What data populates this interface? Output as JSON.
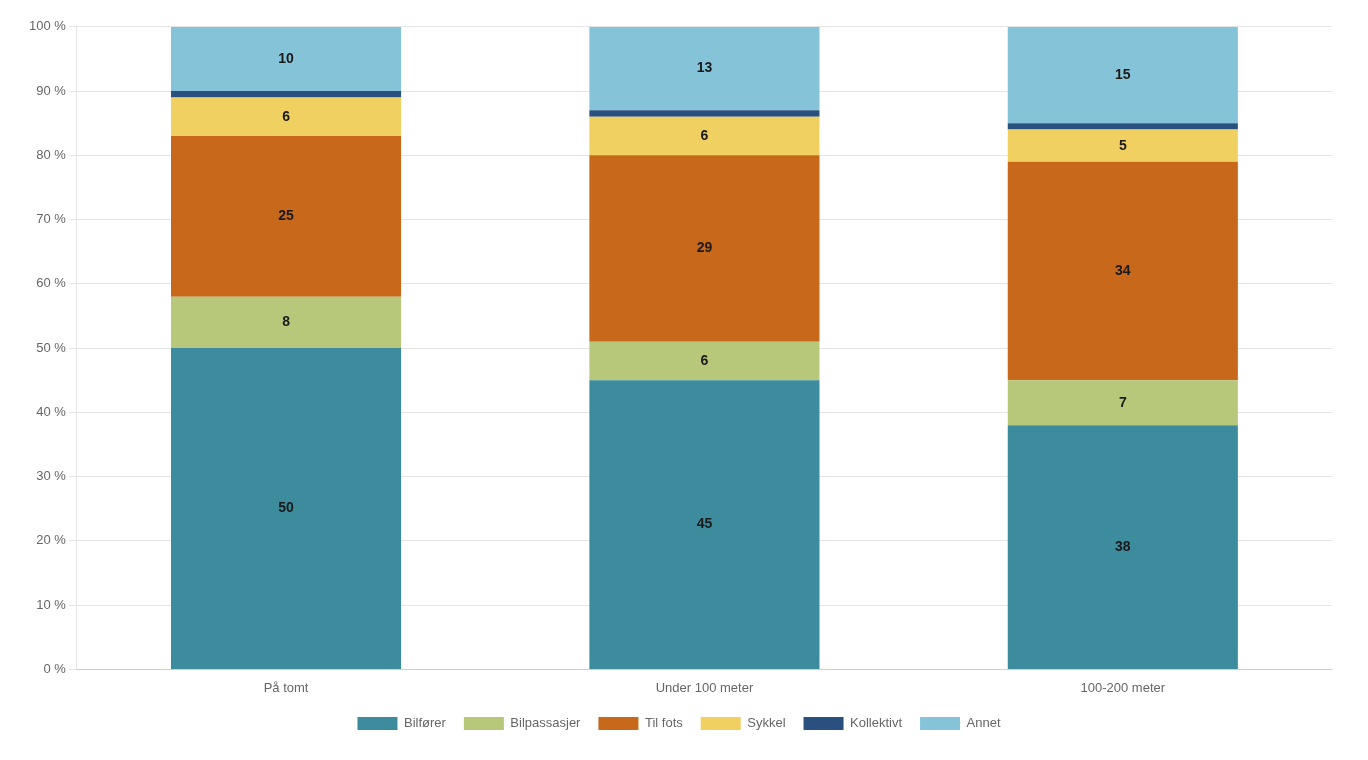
{
  "chart_data": {
    "type": "bar",
    "stacked": true,
    "categories": [
      "På tomt",
      "Under 100 meter",
      "100-200 meter"
    ],
    "series": [
      {
        "name": "Bilfører",
        "color": "#3d8c9e",
        "values": [
          50,
          45,
          38
        ]
      },
      {
        "name": "Bilpassasjer",
        "color": "#b8c87a",
        "values": [
          8,
          6,
          7
        ]
      },
      {
        "name": "Til fots",
        "color": "#c8681a",
        "values": [
          25,
          29,
          34
        ]
      },
      {
        "name": "Sykkel",
        "color": "#f0d060",
        "values": [
          6,
          6,
          5
        ]
      },
      {
        "name": "Kollektivt",
        "color": "#2a5080",
        "values": [
          1,
          1,
          1
        ],
        "data_labels": false
      },
      {
        "name": "Annet",
        "color": "#85c4d8",
        "values": [
          10,
          13,
          15
        ]
      }
    ],
    "ylim": [
      0,
      100
    ],
    "yticks": [
      {
        "value": 0,
        "label": "0 %"
      },
      {
        "value": 10,
        "label": "10 %"
      },
      {
        "value": 20,
        "label": "20 %"
      },
      {
        "value": 30,
        "label": "30 %"
      },
      {
        "value": 40,
        "label": "40 %"
      },
      {
        "value": 50,
        "label": "50 %"
      },
      {
        "value": 60,
        "label": "60 %"
      },
      {
        "value": 70,
        "label": "70 %"
      },
      {
        "value": 80,
        "label": "80 %"
      },
      {
        "value": 90,
        "label": "90 %"
      },
      {
        "value": 100,
        "label": "100 %"
      }
    ],
    "grid": true,
    "legend": "bottom",
    "data_labels": true
  }
}
